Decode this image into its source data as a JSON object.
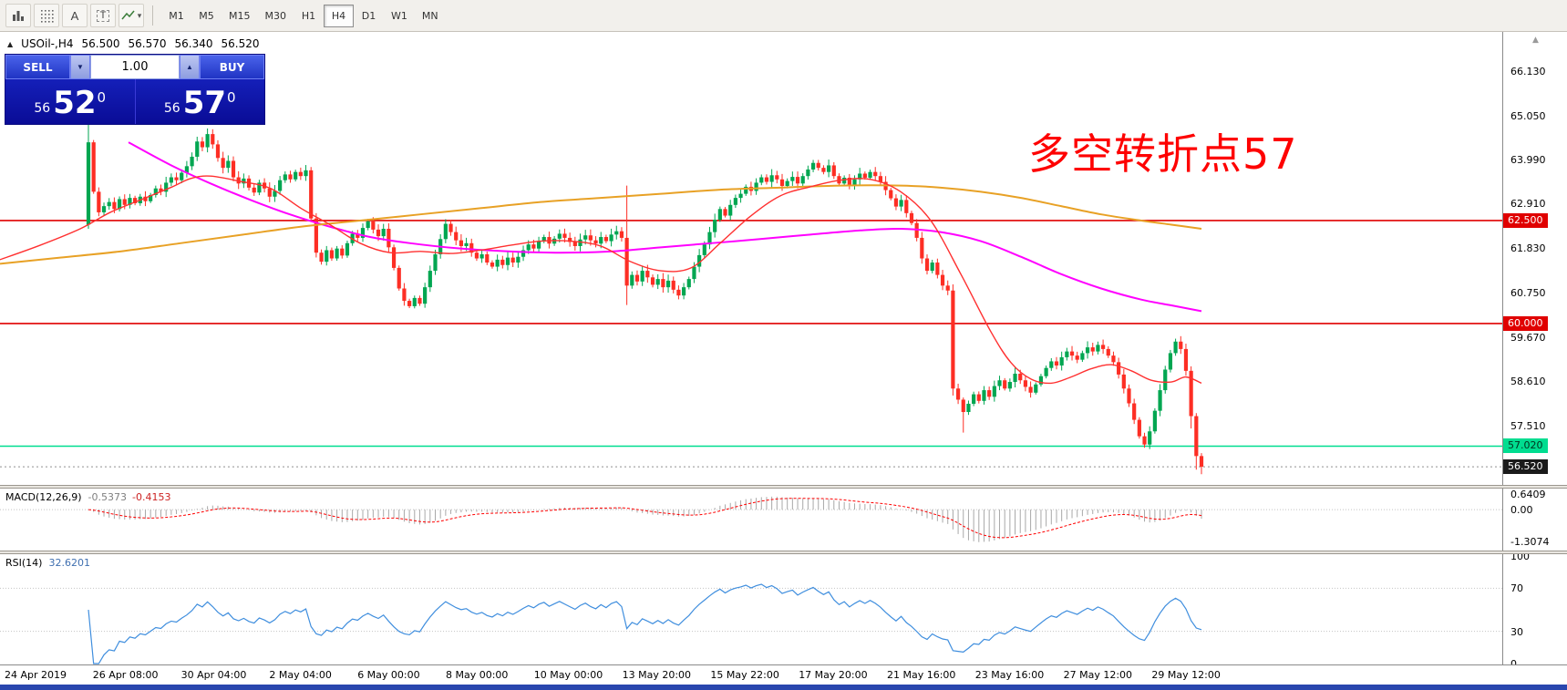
{
  "toolbar": {
    "tools": [
      {
        "name": "bar-chart-tool",
        "glyph": "bars"
      },
      {
        "name": "grid-tool",
        "glyph": "grid"
      },
      {
        "name": "arrow-label-tool",
        "glyph": "A"
      },
      {
        "name": "text-tool",
        "glyph": "T"
      },
      {
        "name": "drawings-tool",
        "glyph": "zigzag"
      }
    ],
    "timeframes": [
      "M1",
      "M5",
      "M15",
      "M30",
      "H1",
      "H4",
      "D1",
      "W1",
      "MN"
    ],
    "active_timeframe": "H4"
  },
  "chart": {
    "symbol_period": "USOil-,H4",
    "open": "56.500",
    "high": "56.570",
    "low": "56.340",
    "close": "56.520",
    "collapse_arrow": "▲"
  },
  "trade_panel": {
    "sell_label": "SELL",
    "buy_label": "BUY",
    "volume": "1.00",
    "sell_price": {
      "small": "56",
      "big": "52",
      "sup": "0"
    },
    "buy_price": {
      "small": "56",
      "big": "57",
      "sup": "0"
    }
  },
  "annotation": {
    "text": "多空转折点57",
    "color": "#fe0000"
  },
  "colors": {
    "bull": "#00a651",
    "bear": "#fd2e24",
    "ma_red": "#ff3030",
    "ma_magenta": "#ff00ff",
    "ma_orange": "#e8a125",
    "level_red": "#e00000",
    "level_green": "#00dd90",
    "bid_line": "#909090",
    "bid_badge_bg": "#1a1a1a",
    "bid_badge_fg": "#ffffff",
    "macd_hist": "#a8a8a8",
    "macd_signal": "#ff0000",
    "rsi_line": "#3f8ede",
    "grid_dotted": "#c4c4c4",
    "bottom_strip": "#2946ae"
  },
  "price_axis": {
    "ticks": [
      {
        "price": 66.13,
        "label": "66.130"
      },
      {
        "price": 65.05,
        "label": "65.050"
      },
      {
        "price": 63.99,
        "label": "63.990"
      },
      {
        "price": 62.91,
        "label": "62.910"
      },
      {
        "price": 61.83,
        "label": "61.830"
      },
      {
        "price": 60.75,
        "label": "60.750"
      },
      {
        "price": 59.67,
        "label": "59.670"
      },
      {
        "price": 58.61,
        "label": "58.610"
      },
      {
        "price": 57.51,
        "label": "57.510"
      }
    ],
    "levels": [
      {
        "price": 62.5,
        "label": "62.500",
        "line": "#e00000",
        "bg": "#e00000",
        "fg": "#ffffff",
        "style": "solid",
        "name": "resistance-62500"
      },
      {
        "price": 60.0,
        "label": "60.000",
        "line": "#e00000",
        "bg": "#e00000",
        "fg": "#ffffff",
        "style": "solid",
        "name": "support-60000"
      },
      {
        "price": 57.02,
        "label": "57.020",
        "line": "#00dd90",
        "bg": "#00dd90",
        "fg": "#00331f",
        "style": "solid",
        "name": "support-57020"
      },
      {
        "price": 56.52,
        "label": "56.520",
        "line": "#909090",
        "bg": "#1a1a1a",
        "fg": "#ffffff",
        "style": "dotted",
        "name": "bid-price"
      }
    ]
  },
  "chart_data": {
    "type": "candlestick",
    "symbol": "USOil-",
    "timeframe": "H4",
    "ohlc_current": {
      "open": 56.5,
      "high": 56.57,
      "low": 56.34,
      "close": 56.52
    },
    "closes": [
      64.4,
      63.2,
      62.7,
      62.85,
      62.95,
      62.78,
      63.02,
      62.88,
      63.05,
      62.92,
      63.08,
      62.97,
      63.12,
      63.28,
      63.2,
      63.42,
      63.55,
      63.48,
      63.66,
      63.82,
      64.05,
      64.42,
      64.28,
      64.6,
      64.35,
      64.02,
      63.78,
      63.95,
      63.55,
      63.4,
      63.52,
      63.3,
      63.18,
      63.42,
      63.28,
      63.08,
      63.22,
      63.48,
      63.62,
      63.5,
      63.68,
      63.58,
      63.72,
      62.55,
      61.72,
      61.5,
      61.78,
      61.58,
      61.82,
      61.65,
      61.95,
      62.18,
      62.08,
      62.32,
      62.48,
      62.28,
      62.12,
      62.3,
      61.85,
      61.35,
      60.85,
      60.55,
      60.42,
      60.62,
      60.48,
      60.88,
      61.28,
      61.68,
      62.05,
      62.42,
      62.22,
      62.02,
      61.88,
      61.95,
      61.72,
      61.58,
      61.68,
      61.48,
      61.38,
      61.55,
      61.42,
      61.6,
      61.48,
      61.62,
      61.78,
      61.92,
      61.82,
      62.0,
      62.1,
      61.94,
      62.06,
      62.18,
      62.08,
      61.98,
      61.88,
      62.04,
      62.14,
      62.02,
      61.94,
      62.1,
      62.0,
      62.16,
      62.24,
      62.08,
      60.92,
      61.18,
      61.02,
      61.28,
      61.12,
      60.94,
      61.08,
      60.88,
      61.04,
      60.82,
      60.68,
      60.88,
      61.08,
      61.38,
      61.66,
      61.92,
      62.22,
      62.52,
      62.78,
      62.62,
      62.88,
      63.05,
      63.15,
      63.32,
      63.22,
      63.42,
      63.55,
      63.44,
      63.6,
      63.5,
      63.34,
      63.46,
      63.56,
      63.4,
      63.58,
      63.74,
      63.9,
      63.78,
      63.68,
      63.84,
      63.58,
      63.4,
      63.54,
      63.34,
      63.5,
      63.64,
      63.54,
      63.68,
      63.58,
      63.44,
      63.24,
      63.04,
      62.84,
      63.0,
      62.68,
      62.44,
      62.08,
      61.58,
      61.28,
      61.48,
      61.18,
      60.92,
      60.8,
      58.42,
      58.15,
      57.85,
      58.05,
      58.28,
      58.12,
      58.38,
      58.22,
      58.48,
      58.62,
      58.42,
      58.58,
      58.78,
      58.62,
      58.46,
      58.32,
      58.52,
      58.72,
      58.92,
      59.08,
      58.98,
      59.18,
      59.32,
      59.22,
      59.12,
      59.28,
      59.42,
      59.32,
      59.48,
      59.38,
      59.22,
      59.06,
      58.76,
      58.42,
      58.06,
      57.66,
      57.26,
      57.06,
      57.38,
      57.88,
      58.38,
      58.88,
      59.28,
      59.56,
      59.38,
      58.85,
      57.75,
      56.78,
      56.52
    ],
    "special_candles": {
      "0": {
        "o": 62.4,
        "h": 65.05,
        "l": 62.3
      },
      "104": {
        "h": 63.35,
        "l": 60.45
      },
      "167": {
        "h": 60.95,
        "l": 58.25
      },
      "169": {
        "l": 57.35
      },
      "213": {
        "l": 57.45
      },
      "214": {
        "l": 56.45
      },
      "215": {
        "h": 56.85,
        "l": 56.34
      }
    },
    "moving_averages": [
      {
        "name": "magenta-ma",
        "color": "#ff00ff",
        "width": 2,
        "points": [
          [
            141,
            64.4
          ],
          [
            187,
            63.85
          ],
          [
            231,
            63.4
          ],
          [
            275,
            63.0
          ],
          [
            318,
            62.65
          ],
          [
            362,
            62.35
          ],
          [
            406,
            62.1
          ],
          [
            450,
            61.95
          ],
          [
            505,
            61.82
          ],
          [
            560,
            61.75
          ],
          [
            615,
            61.72
          ],
          [
            670,
            61.75
          ],
          [
            725,
            61.85
          ],
          [
            780,
            61.95
          ],
          [
            834,
            62.05
          ],
          [
            889,
            62.16
          ],
          [
            944,
            62.26
          ],
          [
            988,
            62.3
          ],
          [
            1032,
            62.22
          ],
          [
            1076,
            62.0
          ],
          [
            1120,
            61.62
          ],
          [
            1164,
            61.2
          ],
          [
            1208,
            60.85
          ],
          [
            1252,
            60.58
          ],
          [
            1285,
            60.44
          ],
          [
            1318,
            60.3
          ]
        ]
      },
      {
        "name": "orange-ma",
        "color": "#e8a125",
        "width": 2,
        "points": [
          [
            0,
            61.45
          ],
          [
            66,
            61.6
          ],
          [
            132,
            61.75
          ],
          [
            198,
            61.95
          ],
          [
            264,
            62.15
          ],
          [
            330,
            62.35
          ],
          [
            395,
            62.5
          ],
          [
            461,
            62.65
          ],
          [
            527,
            62.8
          ],
          [
            593,
            62.95
          ],
          [
            659,
            63.05
          ],
          [
            725,
            63.15
          ],
          [
            790,
            63.25
          ],
          [
            856,
            63.3
          ],
          [
            922,
            63.35
          ],
          [
            988,
            63.35
          ],
          [
            1032,
            63.3
          ],
          [
            1076,
            63.2
          ],
          [
            1120,
            63.05
          ],
          [
            1164,
            62.85
          ],
          [
            1208,
            62.65
          ],
          [
            1252,
            62.5
          ],
          [
            1285,
            62.4
          ],
          [
            1318,
            62.3
          ]
        ]
      },
      {
        "name": "red-ma",
        "color": "#ff3030",
        "width": 1.4,
        "points": [
          [
            0,
            61.55
          ],
          [
            44,
            61.9
          ],
          [
            88,
            62.3
          ],
          [
            121,
            62.7
          ],
          [
            154,
            63.0
          ],
          [
            187,
            63.3
          ],
          [
            209,
            63.52
          ],
          [
            231,
            63.58
          ],
          [
            264,
            63.45
          ],
          [
            297,
            63.28
          ],
          [
            330,
            62.8
          ],
          [
            362,
            62.4
          ],
          [
            395,
            61.95
          ],
          [
            428,
            61.72
          ],
          [
            461,
            61.75
          ],
          [
            494,
            61.7
          ],
          [
            527,
            61.78
          ],
          [
            560,
            61.9
          ],
          [
            593,
            62.0
          ],
          [
            626,
            62.0
          ],
          [
            659,
            61.88
          ],
          [
            692,
            61.5
          ],
          [
            725,
            61.28
          ],
          [
            758,
            61.35
          ],
          [
            790,
            61.95
          ],
          [
            823,
            62.6
          ],
          [
            856,
            63.1
          ],
          [
            889,
            63.32
          ],
          [
            922,
            63.48
          ],
          [
            955,
            63.5
          ],
          [
            988,
            63.2
          ],
          [
            1021,
            62.5
          ],
          [
            1054,
            61.2
          ],
          [
            1087,
            59.8
          ],
          [
            1109,
            59.05
          ],
          [
            1131,
            58.65
          ],
          [
            1153,
            58.55
          ],
          [
            1175,
            58.7
          ],
          [
            1197,
            58.9
          ],
          [
            1219,
            59.0
          ],
          [
            1241,
            58.85
          ],
          [
            1263,
            58.62
          ],
          [
            1285,
            58.58
          ],
          [
            1301,
            58.7
          ],
          [
            1318,
            58.55
          ]
        ]
      }
    ],
    "x_time_labels": [
      "24 Apr 2019",
      "26 Apr 08:00",
      "30 Apr 04:00",
      "2 May 04:00",
      "6 May 00:00",
      "8 May 00:00",
      "10 May 00:00",
      "13 May 20:00",
      "15 May 22:00",
      "17 May 20:00",
      "21 May 16:00",
      "23 May 16:00",
      "27 May 12:00",
      "29 May 12:00"
    ],
    "indicators": {
      "macd": {
        "title": "MACD(12,26,9)",
        "value_main": "-0.5373",
        "value_signal": "-0.4153",
        "params": [
          12,
          26,
          9
        ],
        "axis": [
          {
            "value": 0.6409,
            "label": "0.6409"
          },
          {
            "value": 0.0,
            "label": "0.00"
          },
          {
            "value": -1.3074,
            "label": "-1.3074"
          }
        ]
      },
      "rsi": {
        "title": "RSI(14)",
        "value": "32.6201",
        "period": 14,
        "levels": [
          70,
          30
        ],
        "axis": [
          {
            "value": 100,
            "label": "100"
          },
          {
            "value": 70,
            "label": "70"
          },
          {
            "value": 30,
            "label": "30"
          },
          {
            "value": 0,
            "label": "0"
          }
        ]
      }
    }
  }
}
